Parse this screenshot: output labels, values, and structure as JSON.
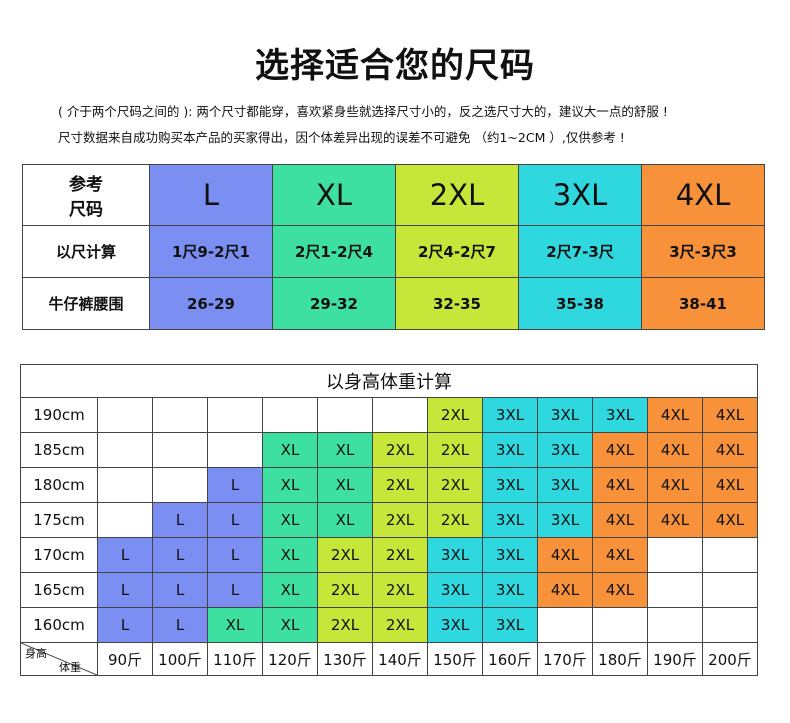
{
  "title": "选择适合您的尺码",
  "notes": [
    "( 介于两个尺码之间的 ): 两个尺寸都能穿，喜欢紧身些就选择尺寸小的，反之选尺寸大的，建议大一点的舒服 !",
    "尺寸数据来自成功购买本产品的买家得出，因个体差异出现的误差不可避免 （约1~2CM ）,仅供参考 !"
  ],
  "colors": {
    "L": "#7b8ff3",
    "XL": "#3ee0a2",
    "2XL": "#c7e63a",
    "3XL": "#2fd8df",
    "4XL": "#f7913a",
    "empty": "#ffffff"
  },
  "size_table": {
    "header_label": "参考\n尺码",
    "sizes": [
      "L",
      "XL",
      "2XL",
      "3XL",
      "4XL"
    ],
    "rows": [
      {
        "label": "以尺计算",
        "values": [
          "1尺9-2尺1",
          "2尺1-2尺4",
          "2尺4-2尺7",
          "2尺7-3尺",
          "3尺-3尺3"
        ]
      },
      {
        "label": "牛仔裤腰围",
        "values": [
          "26-29",
          "29-32",
          "32-35",
          "35-38",
          "38-41"
        ]
      }
    ]
  },
  "hw_table": {
    "caption": "以身高体重计算",
    "corner_height": "身高",
    "corner_weight": "体重",
    "weights": [
      "90斤",
      "100斤",
      "110斤",
      "120斤",
      "130斤",
      "140斤",
      "150斤",
      "160斤",
      "170斤",
      "180斤",
      "190斤",
      "200斤"
    ],
    "rows": [
      {
        "height": "190cm",
        "cells": [
          "",
          "",
          "",
          "",
          "",
          "",
          "2XL",
          "3XL",
          "3XL",
          "3XL",
          "4XL",
          "4XL"
        ]
      },
      {
        "height": "185cm",
        "cells": [
          "",
          "",
          "",
          "XL",
          "XL",
          "2XL",
          "2XL",
          "3XL",
          "3XL",
          "4XL",
          "4XL",
          "4XL"
        ]
      },
      {
        "height": "180cm",
        "cells": [
          "",
          "",
          "L",
          "XL",
          "XL",
          "2XL",
          "2XL",
          "3XL",
          "3XL",
          "4XL",
          "4XL",
          "4XL"
        ]
      },
      {
        "height": "175cm",
        "cells": [
          "",
          "L",
          "L",
          "XL",
          "XL",
          "2XL",
          "2XL",
          "3XL",
          "3XL",
          "4XL",
          "4XL",
          "4XL"
        ]
      },
      {
        "height": "170cm",
        "cells": [
          "L",
          "L",
          "L",
          "XL",
          "2XL",
          "2XL",
          "3XL",
          "3XL",
          "4XL",
          "4XL",
          "",
          ""
        ]
      },
      {
        "height": "165cm",
        "cells": [
          "L",
          "L",
          "L",
          "XL",
          "2XL",
          "2XL",
          "3XL",
          "3XL",
          "4XL",
          "4XL",
          "",
          ""
        ]
      },
      {
        "height": "160cm",
        "cells": [
          "L",
          "L",
          "XL",
          "XL",
          "2XL",
          "2XL",
          "3XL",
          "3XL",
          "",
          "",
          "",
          ""
        ]
      }
    ]
  }
}
